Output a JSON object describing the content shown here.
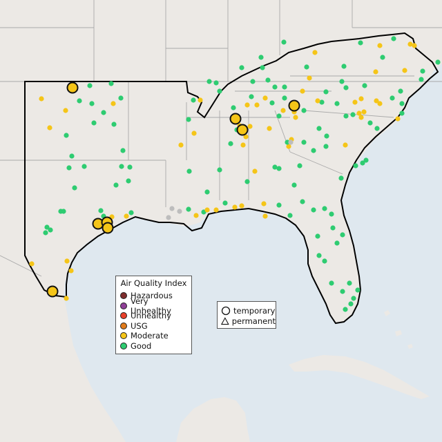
{
  "legend_aqi": {
    "title": "Air Quality Index",
    "categories": [
      {
        "label": "Hazardous",
        "color": "#7e2d2d"
      },
      {
        "label": "Very Unhealthy",
        "color": "#8f3f97"
      },
      {
        "label": "Unhealthy",
        "color": "#e8402a"
      },
      {
        "label": "USG",
        "color": "#e07b1b"
      },
      {
        "label": "Moderate",
        "color": "#f5c518"
      },
      {
        "label": "Good",
        "color": "#2ecc71"
      }
    ]
  },
  "legend_type": {
    "temporary": "temporary",
    "permanent": "permanent"
  },
  "colors": {
    "land": "#ece9e5",
    "water": "#dfe8ef",
    "region_outline": "#000000",
    "state_border": "#a9a9a9",
    "no_data": "#bdbdbd"
  }
}
